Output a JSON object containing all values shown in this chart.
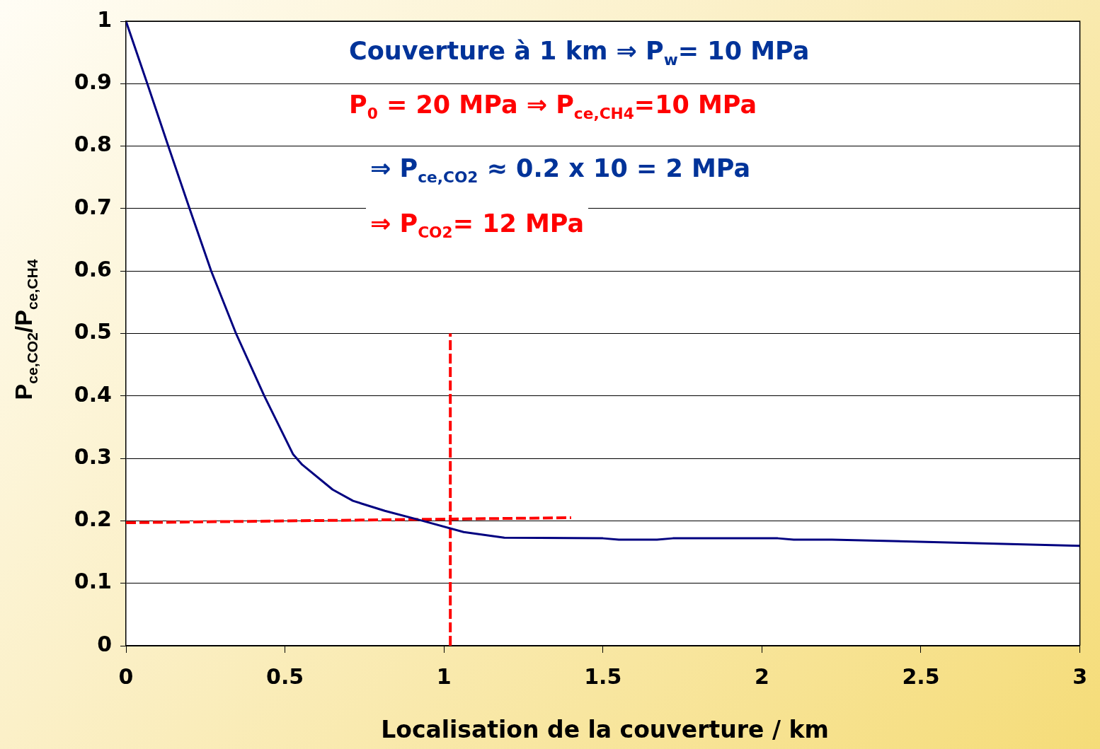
{
  "chart_data": {
    "type": "line",
    "xlabel": "Localisation de la couverture / km",
    "ylabel": "P$_{ce,CO2}$/P$_{ce,CH4}$",
    "annotations": [
      "Couverture à 1 km ⇒ P$_{w}$= 10 MPa",
      "P$_{0}$ = 20 MPa ⇒ P$_{ce,CH4}$=10 MPa",
      "⇒ P$_{ce,CO2}$ ≈ 0.2 x 10 = 2 MPa",
      "⇒ P$_{CO2}$= 12 MPa"
    ],
    "xlim": [
      0,
      3
    ],
    "xticks": [
      0,
      0.5,
      1,
      1.5,
      2,
      2.5,
      3
    ],
    "ylim": [
      0,
      1
    ],
    "yticks": [
      0,
      0.1,
      0.2,
      0.3,
      0.4,
      0.5,
      0.6,
      0.7,
      0.8,
      0.9,
      1
    ],
    "grid": "y",
    "marker": "none",
    "series": [
      {
        "color": "#000080",
        "x": [
          0,
          0.067,
          0.133,
          0.2,
          0.268,
          0.346,
          0.435,
          0.525,
          0.554,
          0.65,
          0.714,
          0.814,
          0.933,
          1.062,
          1.19,
          1.5,
          1.55,
          1.67,
          1.72,
          2.05,
          2.1,
          2.22,
          3
        ],
        "values": [
          1,
          0.9,
          0.8,
          0.7,
          0.6,
          0.5,
          0.4,
          0.307,
          0.29,
          0.25,
          0.232,
          0.216,
          0.2,
          0.182,
          0.173,
          0.172,
          0.17,
          0.17,
          0.172,
          0.172,
          0.17,
          0.17,
          0.16
        ]
      },
      {
        "color": "#ff0000",
        "line_style": "dashed",
        "x": [
          0,
          1.4
        ],
        "values": [
          0.197,
          0.205
        ]
      },
      {
        "color": "#ff0000",
        "line_style": "dashed",
        "x": [
          1.02,
          1.02
        ],
        "values": [
          0,
          0.5
        ]
      }
    ]
  }
}
